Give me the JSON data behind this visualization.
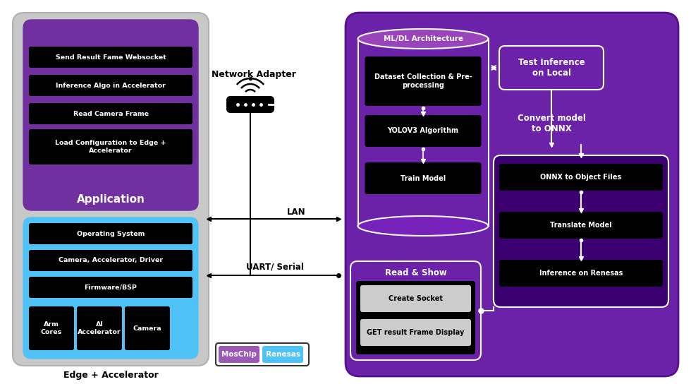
{
  "bg_color": "#ffffff",
  "gray_outer": "#c8c8c8",
  "gray_outer_ec": "#b0b0b0",
  "purple_app": "#7030a0",
  "blue_edge": "#4fc3f7",
  "black_box": "#000000",
  "white": "#ffffff",
  "purple_right": "#6b21a8",
  "purple_right_dark": "#4a0080",
  "purple_ren_box": "#3d0070",
  "moschip_color": "#9b59b6",
  "renesas_color": "#4fc3f7",
  "text_white": "#ffffff",
  "text_black": "#000000",
  "fig_w": 9.8,
  "fig_h": 5.51,
  "dpi": 100,
  "app_boxes": [
    "Send Result Fame Websocket",
    "Inference Algo in Accelerator",
    "Read Camera Frame",
    "Load Configuration to Edge +\nAccelerator"
  ],
  "edge_boxes": [
    "Operating System",
    "Camera, Accelerator, Driver",
    "Firmware/BSP"
  ],
  "sub_boxes": [
    "Arm\nCores",
    "AI\nAccelerator",
    "Camera"
  ],
  "ml_boxes": [
    "Dataset Collection & Pre-\nprocessing",
    "YOLOV3 Algorithm",
    "Train Model"
  ],
  "ren_boxes": [
    "ONNX to Object Files",
    "Translate Model",
    "Inference on Renesas"
  ],
  "rs_boxes": [
    "Create Socket",
    "GET result Frame Display"
  ]
}
